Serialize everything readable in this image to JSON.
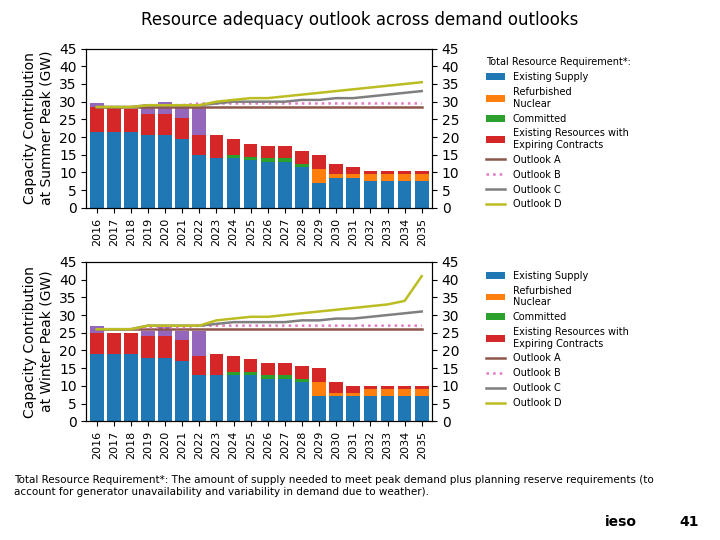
{
  "title": "Resource adequacy outlook across demand outlooks",
  "annotations": [
    "Total Resource Requirement*: The amount of supply needed to meet peak demand plus planning reserve requirements (to\naccount for generator unavailability and variability in demand due to weather).",
    "ieso",
    "41"
  ],
  "chart_data": [
    {
      "type": "bar",
      "stacked": true,
      "legend": "upper left",
      "subtitle": "Total Resource Requirement*:",
      "y_label": "Capacity Contribution\nat Summer Peak (GW)",
      "categories": [
        "2016",
        "2017",
        "2018",
        "2019",
        "2020",
        "2021",
        "2022",
        "2023",
        "2024",
        "2025",
        "2026",
        "2027",
        "2028",
        "2029",
        "2030",
        "2031",
        "2032",
        "2033",
        "2034",
        "2035"
      ],
      "ylim": [
        0,
        45
      ],
      "yticks": [
        0,
        5,
        10,
        15,
        20,
        25,
        30,
        35,
        40,
        45
      ],
      "y2lim": [
        0,
        45
      ],
      "y2ticks": [
        0,
        5,
        10,
        15,
        20,
        25,
        30,
        35,
        40,
        45
      ],
      "series": [
        {
          "name": "Existing Supply",
          "values": [
            21.5,
            21.5,
            21.5,
            20.5,
            20.5,
            19.5,
            15,
            14,
            14,
            13.5,
            13,
            13,
            11.5,
            7,
            8.5,
            8.5,
            7.5,
            7.5,
            7.5,
            7.5
          ]
        },
        {
          "name": "Refurbished\nNuclear",
          "values": [
            0,
            0,
            0,
            0,
            0,
            0,
            0,
            0,
            0,
            0,
            0,
            0,
            0,
            4,
            1,
            1,
            2,
            2,
            2,
            2
          ]
        },
        {
          "name": "Committed",
          "values": [
            0,
            0,
            0,
            0,
            0,
            0,
            0,
            0,
            1,
            1,
            1,
            1,
            1,
            0,
            0,
            0,
            0,
            0,
            0,
            0
          ]
        },
        {
          "name": "Existing Resources with\nExpiring Contracts",
          "values": [
            7,
            7,
            6.5,
            6,
            6,
            6,
            5.5,
            6.5,
            4.5,
            3.5,
            3.5,
            3.5,
            3.5,
            4,
            3,
            2,
            1,
            1,
            1,
            1
          ]
        },
        {
          "values": [
            1,
            0,
            0,
            2,
            3.5,
            3.5,
            8,
            0,
            0,
            0,
            0,
            0,
            0,
            0,
            0,
            0,
            0,
            0,
            0,
            0
          ]
        },
        {
          "name": "Outlook A",
          "type": "line",
          "line_style": "solid",
          "values": [
            28.5,
            28.5,
            28.5,
            28.5,
            28.5,
            28.5,
            28.5,
            28.5,
            28.5,
            28.5,
            28.5,
            28.5,
            28.5,
            28.5,
            28.5,
            28.5,
            28.5,
            28.5,
            28.5,
            28.5
          ]
        },
        {
          "name": "Outlook B",
          "type": "line",
          "line_style": "dotted",
          "values": [
            28.5,
            28.5,
            28.5,
            29,
            29,
            29,
            29.5,
            29.5,
            29.5,
            29.5,
            29.5,
            29.5,
            29.5,
            29.5,
            29.5,
            29.5,
            29.5,
            29.5,
            29.5,
            29.5
          ]
        },
        {
          "name": "Outlook C",
          "type": "line",
          "line_style": "solid",
          "values": [
            28.5,
            28.5,
            28.5,
            29,
            29,
            29,
            29,
            29.5,
            30,
            30,
            30,
            30,
            30.5,
            30.5,
            31,
            31,
            31.5,
            32,
            32.5,
            33
          ]
        },
        {
          "name": "Outlook D",
          "type": "line",
          "line_style": "solid",
          "values": [
            28.5,
            28.5,
            28.5,
            29,
            29,
            29,
            29,
            30,
            30.5,
            31,
            31,
            31.5,
            32,
            32.5,
            33,
            33.5,
            34,
            34.5,
            35,
            35.5
          ]
        }
      ]
    },
    {
      "type": "bar",
      "stacked": true,
      "legend": "upper left",
      "y_label": "Capacity Contribution\nat Winter Peak (GW)",
      "categories": [
        "2016",
        "2017",
        "2018",
        "2019",
        "2020",
        "2021",
        "2022",
        "2023",
        "2024",
        "2025",
        "2026",
        "2027",
        "2028",
        "2029",
        "2030",
        "2031",
        "2032",
        "2033",
        "2034",
        "2035"
      ],
      "ylim": [
        0,
        45
      ],
      "yticks": [
        0,
        5,
        10,
        15,
        20,
        25,
        30,
        35,
        40,
        45
      ],
      "y2lim": [
        0,
        45
      ],
      "y2ticks": [
        0,
        5,
        10,
        15,
        20,
        25,
        30,
        35,
        40,
        45
      ],
      "series": [
        {
          "name": "Existing Supply",
          "values": [
            19,
            19,
            19,
            18,
            18,
            17,
            13,
            13,
            13,
            13,
            12,
            12,
            11,
            7,
            7,
            7,
            7,
            7,
            7,
            7
          ]
        },
        {
          "name": "Refurbished\nNuclear",
          "values": [
            0,
            0,
            0,
            0,
            0,
            0,
            0,
            0,
            0,
            0,
            0,
            0,
            0,
            4,
            1,
            1,
            2,
            2,
            2,
            2
          ]
        },
        {
          "name": "Committed",
          "values": [
            0,
            0,
            0,
            0,
            0,
            0,
            0,
            0,
            1,
            1,
            1,
            1,
            1,
            0,
            0,
            0,
            0,
            0,
            0,
            0
          ]
        },
        {
          "name": "Existing Resources with\nExpiring Contracts",
          "values": [
            6,
            6,
            6,
            6,
            6,
            6,
            5.5,
            6,
            4.5,
            3.5,
            3.5,
            3.5,
            3.5,
            4,
            3,
            2,
            1,
            1,
            1,
            1
          ]
        },
        {
          "values": [
            2,
            0,
            0,
            1.5,
            2.5,
            2.5,
            7,
            0,
            0,
            0,
            0,
            0,
            0,
            0,
            0,
            0,
            0,
            0,
            0,
            0
          ]
        },
        {
          "name": "Outlook A",
          "type": "line",
          "line_style": "solid",
          "values": [
            26,
            26,
            26,
            26,
            26,
            26,
            26,
            26,
            26,
            26,
            26,
            26,
            26,
            26,
            26,
            26,
            26,
            26,
            26,
            26
          ]
        },
        {
          "name": "Outlook B",
          "type": "line",
          "line_style": "dotted",
          "values": [
            26,
            26,
            26,
            26.5,
            26.5,
            26.5,
            27,
            27,
            27,
            27,
            27,
            27,
            27,
            27,
            27,
            27,
            27,
            27,
            27,
            27
          ]
        },
        {
          "name": "Outlook C",
          "type": "line",
          "line_style": "solid",
          "values": [
            26,
            26,
            26,
            27,
            27,
            27,
            27,
            27.5,
            28,
            28,
            28,
            28,
            28.5,
            28.5,
            29,
            29,
            29.5,
            30,
            30.5,
            31
          ]
        },
        {
          "name": "Outlook D",
          "type": "line",
          "line_style": "solid",
          "values": [
            26,
            26,
            26,
            27,
            27,
            27,
            27,
            28.5,
            29,
            29.5,
            29.5,
            30,
            30.5,
            31,
            31.5,
            32,
            32.5,
            33,
            34,
            41
          ]
        }
      ]
    }
  ]
}
